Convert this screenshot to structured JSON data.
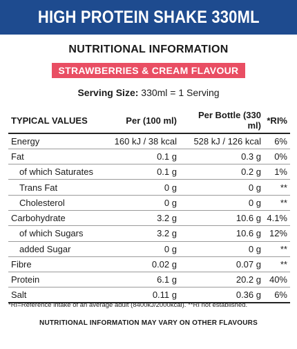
{
  "header": {
    "title": "HIGH PROTEIN SHAKE 330ML"
  },
  "nutrition_heading": "NUTRITIONAL INFORMATION",
  "flavour": "STRAWBERRIES & CREAM FLAVOUR",
  "serving": {
    "label": "Serving Size:",
    "value": "330ml = 1 Serving"
  },
  "table": {
    "headers": [
      "TYPICAL VALUES",
      "Per (100 ml)",
      "Per Bottle (330 ml)",
      "*RI%"
    ],
    "rows": [
      {
        "name": "Energy",
        "per100": "160 kJ / 38 kcal",
        "perBottle": "528 kJ / 126 kcal",
        "ri": "6%"
      },
      {
        "name": "Fat",
        "per100": "0.1 g",
        "perBottle": "0.3 g",
        "ri": "0%"
      },
      {
        "name": "of which Saturates",
        "per100": "0.1 g",
        "perBottle": "0.2 g",
        "ri": "1%"
      },
      {
        "name": "Trans Fat",
        "per100": "0 g",
        "perBottle": "0 g",
        "ri": "**"
      },
      {
        "name": "Cholesterol",
        "per100": "0 g",
        "perBottle": "0 g",
        "ri": "**"
      },
      {
        "name": "Carbohydrate",
        "per100": "3.2 g",
        "perBottle": "10.6 g",
        "ri": "4.1%"
      },
      {
        "name": "of which Sugars",
        "per100": "3.2 g",
        "perBottle": "10.6 g",
        "ri": "12%"
      },
      {
        "name": "added Sugar",
        "per100": "0 g",
        "perBottle": "0 g",
        "ri": "**"
      },
      {
        "name": "Fibre",
        "per100": "0.02 g",
        "perBottle": "0.07 g",
        "ri": "**"
      },
      {
        "name": "Protein",
        "per100": "6.1 g",
        "perBottle": "20.2 g",
        "ri": "40%"
      },
      {
        "name": "Salt",
        "per100": "0.11 g",
        "perBottle": "0.36 g",
        "ri": "6%"
      }
    ]
  },
  "footnote": "*RI=Reference intake of an average adult (8400kJ/2000kcal). **RI not established.",
  "bottom_note": "NUTRITIONAL INFORMATION MAY VARY ON OTHER FLAVOURS",
  "colors": {
    "banner": "#1e4b8f",
    "flavour_badge": "#e94e63"
  }
}
